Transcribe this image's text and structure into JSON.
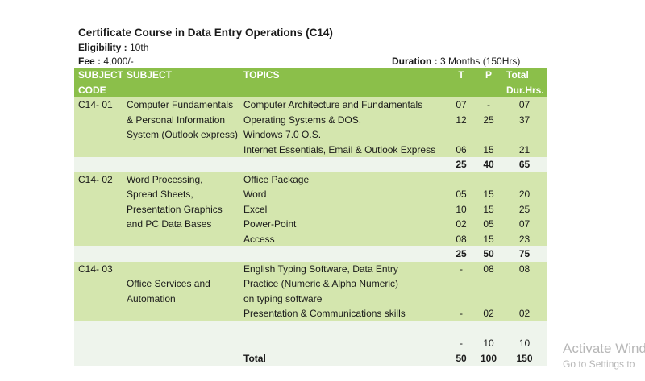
{
  "header": {
    "title": "Certificate Course in Data Entry Operations (C14)",
    "eligibility_label": "Eligibility :",
    "eligibility_value": " 10th",
    "fee_label": "Fee :",
    "fee_value": " 4,000/-",
    "duration_label": "Duration :",
    "duration_value": " 3 Months (150Hrs)"
  },
  "columns": {
    "code_1": "SUBJECT",
    "code_2": "CODE",
    "subject": "SUBJECT",
    "topics": "TOPICS",
    "t": "T",
    "p": "P",
    "total_1": "Total",
    "total_2": "Dur.Hrs."
  },
  "rows": [
    {
      "code": "C14- 01",
      "subject": "Computer Fundamentals",
      "topic": "Computer Architecture and Fundamentals",
      "t": "07",
      "p": "-",
      "total": "07"
    },
    {
      "code": "",
      "subject": "& Personal Information",
      "topic": "Operating Systems & DOS,",
      "t": "12",
      "p": "25",
      "total": "37"
    },
    {
      "code": "",
      "subject": "System (Outlook express)",
      "topic": "Windows 7.0 O.S.",
      "t": "",
      "p": "",
      "total": ""
    },
    {
      "code": "",
      "subject": "",
      "topic": "Internet Essentials, Email & Outlook Express",
      "t": "06",
      "p": "15",
      "total": "21"
    },
    {
      "code": "",
      "subject": "",
      "topic": "",
      "t": "25",
      "p": "40",
      "total": "65"
    },
    {
      "code": "C14- 02",
      "subject": "Word Processing,",
      "topic": "Office Package",
      "t": "",
      "p": "",
      "total": ""
    },
    {
      "code": "",
      "subject": "Spread Sheets,",
      "topic": "Word",
      "t": "05",
      "p": "15",
      "total": "20"
    },
    {
      "code": "",
      "subject": "Presentation Graphics",
      "topic": "Excel",
      "t": "10",
      "p": "15",
      "total": "25"
    },
    {
      "code": "",
      "subject": "and PC Data Bases",
      "topic": "Power-Point",
      "t": "02",
      "p": "05",
      "total": "07"
    },
    {
      "code": "",
      "subject": "",
      "topic": "Access",
      "t": "08",
      "p": "15",
      "total": "23"
    },
    {
      "code": "",
      "subject": "",
      "topic": "",
      "t": "25",
      "p": "50",
      "total": "75"
    },
    {
      "code": "C14- 03",
      "subject": "",
      "topic": "English Typing Software, Data Entry",
      "t": "-",
      "p": "08",
      "total": "08"
    },
    {
      "code": "",
      "subject": "Office Services and",
      "topic": "Practice (Numeric & Alpha Numeric)",
      "t": "",
      "p": "",
      "total": ""
    },
    {
      "code": "",
      "subject": "Automation",
      "topic": "on typing software",
      "t": "",
      "p": "",
      "total": ""
    },
    {
      "code": "",
      "subject": "",
      "topic": "Presentation & Communications skills",
      "t": "-",
      "p": "02",
      "total": "02"
    },
    {
      "code": "",
      "subject": "",
      "topic": "",
      "t": "",
      "p": "",
      "total": ""
    },
    {
      "code": "",
      "subject": "",
      "topic": "",
      "t": "-",
      "p": "10",
      "total": "10"
    },
    {
      "code": "",
      "subject": "",
      "topic": "Total",
      "t": "50",
      "p": "100",
      "total": "150"
    }
  ],
  "watermark": {
    "line1": "Activate Wind",
    "line2": "Go to Settings to"
  }
}
